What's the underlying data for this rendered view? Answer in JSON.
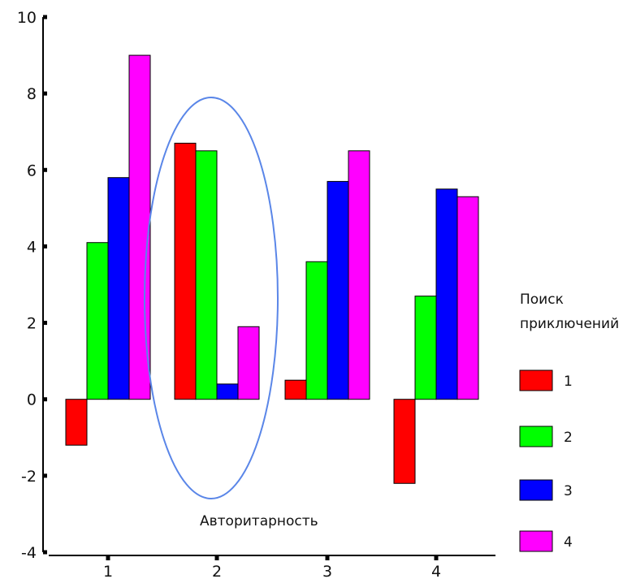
{
  "chart_data": {
    "type": "bar",
    "categories": [
      "1",
      "2",
      "3",
      "4"
    ],
    "series": [
      {
        "name": "1",
        "color": "#ff0000",
        "values": [
          -1.2,
          6.7,
          0.5,
          -2.2
        ]
      },
      {
        "name": "2",
        "color": "#00ff00",
        "values": [
          4.1,
          6.5,
          3.6,
          2.7
        ]
      },
      {
        "name": "3",
        "color": "#0000ff",
        "values": [
          5.8,
          0.4,
          5.7,
          5.5
        ]
      },
      {
        "name": "4",
        "color": "#ff00ff",
        "values": [
          9.0,
          1.9,
          6.5,
          5.3
        ]
      }
    ],
    "ylim": [
      -4,
      10
    ],
    "yticks": [
      "-4",
      "-2",
      "0",
      "2",
      "4",
      "6",
      "8",
      "10"
    ],
    "xlabel": "",
    "ylabel": "",
    "title": "",
    "grid": false,
    "legend": {
      "title_line1": "Поиск",
      "title_line2": "приключений",
      "placement": "right"
    },
    "annotation": {
      "text": "Авторитарность",
      "highlighted_category": "2",
      "ellipse_color": "#5a86e8"
    }
  }
}
